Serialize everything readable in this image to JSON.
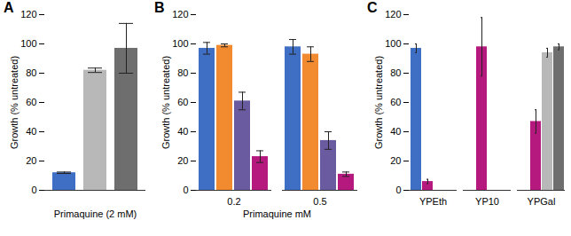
{
  "chart_data": [
    {
      "type": "bar",
      "title": "A",
      "y_label": "Growth (% untreated)",
      "x_label": "Primaquine (2 mM)",
      "categories": [
        null,
        null,
        null
      ],
      "values": [
        12,
        82,
        97
      ],
      "errors": [
        0.5,
        1.5,
        17
      ],
      "colors": [
        "#3f6fc4",
        "#b8b8b8",
        "#6e6e6e"
      ],
      "ylim": [
        0,
        120
      ],
      "yticks": [
        0,
        20,
        40,
        60,
        80,
        100,
        120
      ]
    },
    {
      "type": "bar",
      "title": "B",
      "y_label": "Growth (% untreated)",
      "x_label": "Primaquine mM",
      "categories": [
        "0.2",
        "0.5"
      ],
      "series": [
        {
          "color": "#3f6fc4",
          "values": [
            97,
            98
          ],
          "errors": [
            4,
            5
          ]
        },
        {
          "color": "#f28b30",
          "values": [
            99,
            93
          ],
          "errors": [
            1,
            5
          ]
        },
        {
          "color": "#6a5aa0",
          "values": [
            61,
            34
          ],
          "errors": [
            6,
            6
          ]
        },
        {
          "color": "#b5197e",
          "values": [
            23,
            11
          ],
          "errors": [
            4,
            1.5
          ]
        }
      ],
      "ylim": [
        0,
        120
      ],
      "yticks": [
        0,
        20,
        40,
        60,
        80,
        100,
        120
      ]
    },
    {
      "type": "bar",
      "title": "C",
      "y_label": "Growth (% untreated)",
      "categories": [
        "YPEth",
        "YP10",
        "YPGal"
      ],
      "series": [
        {
          "color": "#3f6fc4",
          "values": [
            97,
            null,
            null
          ],
          "errors": [
            3,
            null,
            null
          ]
        },
        {
          "color": "#b5197e",
          "values": [
            6,
            98,
            47
          ],
          "errors": [
            1.5,
            20,
            8
          ]
        },
        {
          "color": "#b8b8b8",
          "values": [
            null,
            null,
            94
          ],
          "errors": [
            null,
            null,
            3
          ]
        },
        {
          "color": "#6e6e6e",
          "values": [
            null,
            null,
            98
          ],
          "errors": [
            null,
            null,
            2
          ]
        }
      ],
      "ylim": [
        0,
        120
      ],
      "yticks": [
        0,
        20,
        40,
        60,
        80,
        100,
        120
      ]
    }
  ]
}
